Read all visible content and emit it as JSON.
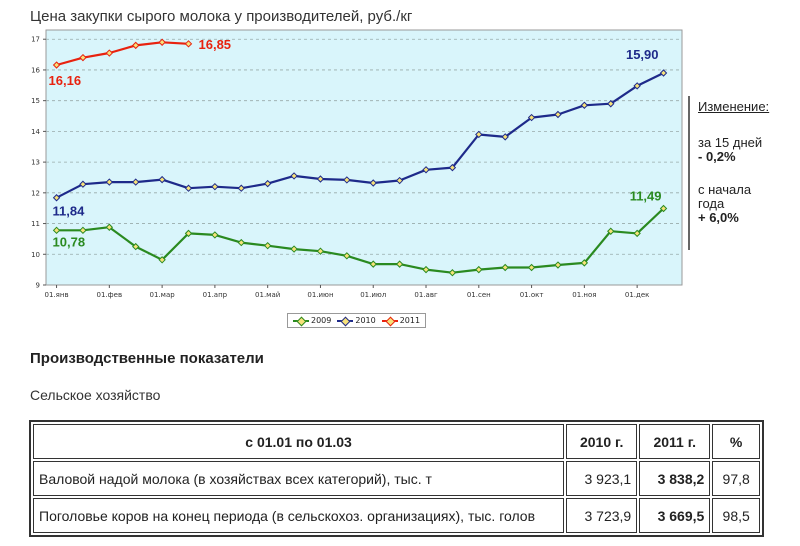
{
  "chart_data": {
    "type": "line",
    "title": "Цена закупки сырого молока у производителей, руб./кг",
    "x_tick_labels": [
      "01.янв",
      "01.фев",
      "01.мар",
      "01.апр",
      "01.май",
      "01.июн",
      "01.июл",
      "01.авг",
      "01.сен",
      "01.окт",
      "01.ноя",
      "01.дек"
    ],
    "y_ticks": [
      9,
      10,
      11,
      12,
      13,
      14,
      15,
      16,
      17
    ],
    "ylim": [
      9,
      17.3
    ],
    "grid": "horizontal dashed",
    "background": "#d9f5fb",
    "legend_position": "bottom",
    "series": [
      {
        "name": "2009",
        "color": "#2a8a20",
        "x": [
          0,
          0.5,
          1,
          1.5,
          2,
          2.5,
          3,
          3.5,
          4,
          4.5,
          5,
          5.5,
          6,
          6.5,
          7,
          7.5,
          8,
          8.5,
          9,
          9.5,
          10,
          10.5,
          11,
          11.5
        ],
        "values": [
          10.78,
          10.78,
          10.88,
          10.25,
          9.82,
          10.68,
          10.63,
          10.38,
          10.28,
          10.17,
          10.1,
          9.95,
          9.68,
          9.68,
          9.5,
          9.4,
          9.5,
          9.57,
          9.57,
          9.65,
          9.72,
          10.75,
          10.68,
          11.49
        ]
      },
      {
        "name": "2010",
        "color": "#1e2a8a",
        "x": [
          0,
          0.5,
          1,
          1.5,
          2,
          2.5,
          3,
          3.5,
          4,
          4.5,
          5,
          5.5,
          6,
          6.5,
          7,
          7.5,
          8,
          8.5,
          9,
          9.5,
          10,
          10.5,
          11,
          11.5
        ],
        "values": [
          11.84,
          12.28,
          12.35,
          12.35,
          12.43,
          12.15,
          12.2,
          12.15,
          12.3,
          12.55,
          12.45,
          12.42,
          12.32,
          12.4,
          12.75,
          12.82,
          13.9,
          13.82,
          14.45,
          14.55,
          14.85,
          14.9,
          15.48,
          15.9
        ]
      },
      {
        "name": "2011",
        "color": "#e8220f",
        "x": [
          0,
          0.5,
          1,
          1.5,
          2,
          2.5
        ],
        "values": [
          16.16,
          16.4,
          16.55,
          16.8,
          16.9,
          16.85
        ]
      }
    ],
    "annotations": [
      {
        "text": "16,16",
        "series": "2011",
        "color": "#e8220f"
      },
      {
        "text": "16,85",
        "series": "2011",
        "color": "#e8220f"
      },
      {
        "text": "15,90",
        "series": "2010",
        "color": "#1e2a8a"
      },
      {
        "text": "11,84",
        "series": "2010",
        "color": "#1e2a8a"
      },
      {
        "text": "11,49",
        "series": "2009",
        "color": "#2a8a20"
      },
      {
        "text": "10,78",
        "series": "2009",
        "color": "#2a8a20"
      }
    ]
  },
  "side_panel": {
    "heading": "Изменение:",
    "period1_label_line1": "за 15 дней",
    "period1_value": "- 0,2%",
    "period2_label_line1": "с начала",
    "period2_label_line2": "года",
    "period2_value": "+ 6,0%"
  },
  "section_title": "Производственные показатели",
  "subsection_title": "Сельское хозяйство",
  "table": {
    "headers": [
      "с 01.01 по 01.03",
      "2010 г.",
      "2011 г.",
      "%"
    ],
    "rows": [
      [
        "Валовой надой молока (в хозяйствах всех категорий), тыс. т",
        "3 923,1",
        "3 838,2",
        "97,8"
      ],
      [
        "Поголовье коров на конец периода (в сельскохоз. организациях), тыс. голов",
        "3 723,9",
        "3 669,5",
        "98,5"
      ]
    ]
  }
}
